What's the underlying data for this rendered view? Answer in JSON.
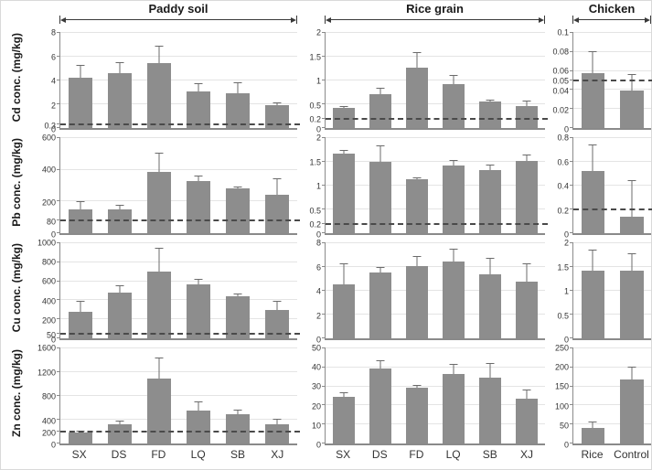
{
  "figure": {
    "column_headers": [
      "Paddy soil",
      "Rice grain",
      "Chicken"
    ],
    "row_labels": [
      "Cd conc. (mg/kg)",
      "Pb conc. (mg/kg)",
      "Cu conc. (mg/kg)",
      "Zn conc. (mg/kg)"
    ],
    "x_axis_labels": {
      "sites": [
        "SX",
        "DS",
        "FD",
        "LQ",
        "SB",
        "XJ"
      ],
      "chicken": [
        "Rice",
        "Control"
      ]
    }
  },
  "colors": {
    "bar_fill": "#8d8d8d",
    "error_bar": "#6b6b6b",
    "axis": "#8a8a8a",
    "gridline": "#e4e4e4",
    "dashed_reference": "#4a4a4a",
    "text": "#262626"
  },
  "chart_data": [
    {
      "type": "bar",
      "metal": "Cd",
      "panel": "Paddy soil",
      "ylabel": "Cd conc. (mg/kg)",
      "categories": [
        "SX",
        "DS",
        "FD",
        "LQ",
        "SB",
        "XJ"
      ],
      "values": [
        4.25,
        4.6,
        5.5,
        3.05,
        2.95,
        1.9
      ],
      "errors": [
        0.95,
        0.85,
        1.35,
        0.65,
        0.85,
        0.15
      ],
      "ylim": [
        0,
        8
      ],
      "yticks": [
        0,
        0.3,
        2,
        4,
        6,
        8
      ],
      "dashed_line": 0.3,
      "grid": true
    },
    {
      "type": "bar",
      "metal": "Cd",
      "panel": "Rice grain",
      "ylabel": "Cd conc. (mg/kg)",
      "categories": [
        "SX",
        "DS",
        "FD",
        "LQ",
        "SB",
        "XJ"
      ],
      "values": [
        0.42,
        0.72,
        1.27,
        0.92,
        0.55,
        0.47
      ],
      "errors": [
        0.03,
        0.1,
        0.3,
        0.17,
        0.03,
        0.08
      ],
      "ylim": [
        0,
        2
      ],
      "yticks": [
        0,
        0.2,
        0.5,
        1,
        1.5,
        2
      ],
      "dashed_line": 0.2,
      "grid": true
    },
    {
      "type": "bar",
      "metal": "Cd",
      "panel": "Chicken",
      "ylabel": "Cd conc. (mg/kg)",
      "categories": [
        "Rice",
        "Control"
      ],
      "values": [
        0.058,
        0.039
      ],
      "errors": [
        0.022,
        0.017
      ],
      "ylim": [
        0,
        0.1
      ],
      "yticks": [
        0,
        0.02,
        0.04,
        0.05,
        0.06,
        0.08,
        0.1
      ],
      "dashed_line": 0.05,
      "grid": true
    },
    {
      "type": "bar",
      "metal": "Pb",
      "panel": "Paddy soil",
      "ylabel": "Pb conc. (mg/kg)",
      "categories": [
        "SX",
        "DS",
        "FD",
        "LQ",
        "SB",
        "XJ"
      ],
      "values": [
        150,
        150,
        385,
        330,
        280,
        245
      ],
      "errors": [
        45,
        25,
        115,
        25,
        10,
        95
      ],
      "ylim": [
        0,
        600
      ],
      "yticks": [
        0,
        80,
        200,
        400,
        600
      ],
      "dashed_line": 80,
      "grid": true
    },
    {
      "type": "bar",
      "metal": "Pb",
      "panel": "Rice grain",
      "ylabel": "Pb conc. (mg/kg)",
      "categories": [
        "SX",
        "DS",
        "FD",
        "LQ",
        "SB",
        "XJ"
      ],
      "values": [
        1.67,
        1.5,
        1.14,
        1.43,
        1.32,
        1.52
      ],
      "errors": [
        0.07,
        0.33,
        0.02,
        0.08,
        0.1,
        0.12
      ],
      "ylim": [
        0,
        2
      ],
      "yticks": [
        0,
        0.2,
        0.5,
        1,
        1.5,
        2
      ],
      "dashed_line": 0.2,
      "grid": true
    },
    {
      "type": "bar",
      "metal": "Pb",
      "panel": "Chicken",
      "ylabel": "Pb conc. (mg/kg)",
      "categories": [
        "Rice",
        "Control"
      ],
      "values": [
        0.52,
        0.14
      ],
      "errors": [
        0.22,
        0.3
      ],
      "ylim": [
        0,
        0.8
      ],
      "yticks": [
        0,
        0.2,
        0.4,
        0.6,
        0.8
      ],
      "dashed_line": 0.2,
      "grid": true
    },
    {
      "type": "bar",
      "metal": "Cu",
      "panel": "Paddy soil",
      "ylabel": "Cu conc. (mg/kg)",
      "categories": [
        "SX",
        "DS",
        "FD",
        "LQ",
        "SB",
        "XJ"
      ],
      "values": [
        275,
        480,
        700,
        565,
        445,
        300
      ],
      "errors": [
        110,
        70,
        240,
        50,
        15,
        85
      ],
      "ylim": [
        0,
        1000
      ],
      "yticks": [
        0,
        50,
        200,
        400,
        600,
        800,
        1000
      ],
      "dashed_line": 50,
      "grid": true
    },
    {
      "type": "bar",
      "metal": "Cu",
      "panel": "Rice grain",
      "ylabel": "Cu conc. (mg/kg)",
      "categories": [
        "SX",
        "DS",
        "FD",
        "LQ",
        "SB",
        "XJ"
      ],
      "values": [
        4.55,
        5.55,
        6.1,
        6.45,
        5.35,
        4.75
      ],
      "errors": [
        1.65,
        0.4,
        0.75,
        1.0,
        1.35,
        1.5
      ],
      "ylim": [
        0,
        8
      ],
      "yticks": [
        0,
        2,
        4,
        6,
        8
      ],
      "dashed_line": null,
      "grid": true
    },
    {
      "type": "bar",
      "metal": "Cu",
      "panel": "Chicken",
      "ylabel": "Cu conc. (mg/kg)",
      "categories": [
        "Rice",
        "Control"
      ],
      "values": [
        1.43,
        1.43
      ],
      "errors": [
        0.42,
        0.34
      ],
      "ylim": [
        0,
        2
      ],
      "yticks": [
        0,
        0.5,
        1,
        1.5,
        2
      ],
      "dashed_line": null,
      "grid": true
    },
    {
      "type": "bar",
      "metal": "Zn",
      "panel": "Paddy soil",
      "ylabel": "Zn conc. (mg/kg)",
      "categories": [
        "SX",
        "DS",
        "FD",
        "LQ",
        "SB",
        "XJ"
      ],
      "values": [
        185,
        320,
        1100,
        560,
        495,
        330
      ],
      "errors": [
        20,
        45,
        330,
        140,
        55,
        65
      ],
      "ylim": [
        0,
        1600
      ],
      "yticks": [
        0,
        200,
        400,
        800,
        1200,
        1600
      ],
      "dashed_line": 200,
      "grid": true
    },
    {
      "type": "bar",
      "metal": "Zn",
      "panel": "Rice grain",
      "ylabel": "Zn conc. (mg/kg)",
      "categories": [
        "SX",
        "DS",
        "FD",
        "LQ",
        "SB",
        "XJ"
      ],
      "values": [
        24.5,
        39.5,
        29.5,
        36.5,
        34.5,
        23.5
      ],
      "errors": [
        2,
        4,
        1,
        5,
        7.5,
        4.5
      ],
      "ylim": [
        0,
        50
      ],
      "yticks": [
        0,
        10,
        20,
        30,
        40,
        50
      ],
      "dashed_line": null,
      "grid": true
    },
    {
      "type": "bar",
      "metal": "Zn",
      "panel": "Chicken",
      "ylabel": "Zn conc. (mg/kg)",
      "categories": [
        "Rice",
        "Control"
      ],
      "values": [
        42,
        168
      ],
      "errors": [
        13,
        32
      ],
      "ylim": [
        0,
        250
      ],
      "yticks": [
        0,
        50,
        100,
        150,
        200,
        250
      ],
      "dashed_line": null,
      "grid": true
    }
  ]
}
